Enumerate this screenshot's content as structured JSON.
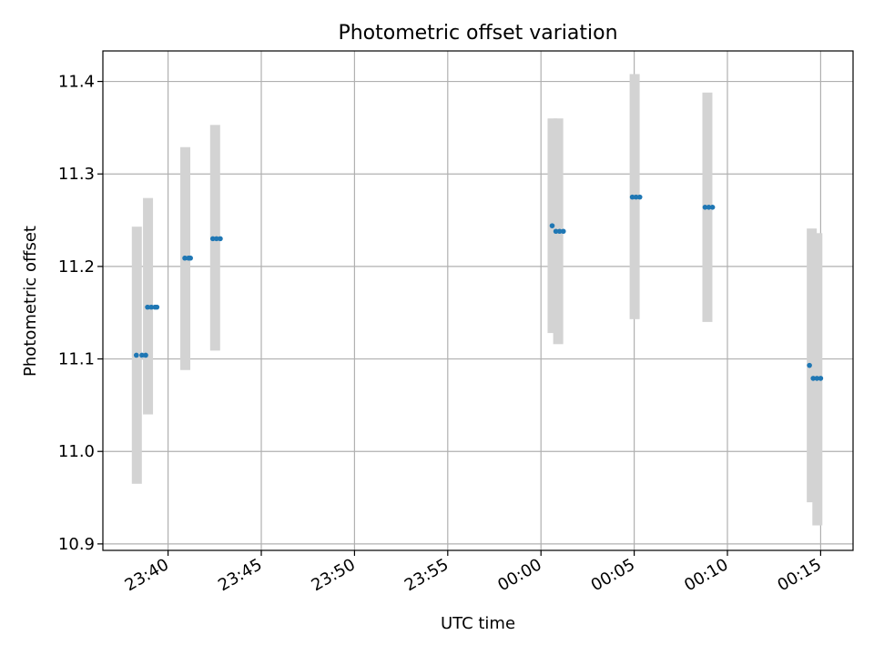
{
  "chart_data": {
    "type": "scatter",
    "title": "Photometric offset variation",
    "xlabel": "UTC time",
    "ylabel": "Photometric offset",
    "x_axis": {
      "type": "time",
      "ticks": [
        "23:40",
        "23:45",
        "23:50",
        "23:55",
        "00:00",
        "00:05",
        "00:10",
        "00:15"
      ]
    },
    "y_axis": {
      "ylim": [
        10.893,
        11.433
      ],
      "ticks": [
        "10.9",
        "11.0",
        "11.1",
        "11.2",
        "11.3",
        "11.4"
      ]
    },
    "grid": true,
    "error_bar_color": "#d3d3d3",
    "point_color": "#1f77b4",
    "error_bars": [
      {
        "x": "23:38.3",
        "low": 10.965,
        "high": 11.243
      },
      {
        "x": "23:38.9",
        "low": 11.04,
        "high": 11.274
      },
      {
        "x": "23:40.9",
        "low": 11.088,
        "high": 11.329
      },
      {
        "x": "23:42.5",
        "low": 11.109,
        "high": 11.353
      },
      {
        "x": "00:00.6",
        "low": 11.128,
        "high": 11.36
      },
      {
        "x": "00:00.9",
        "low": 11.116,
        "high": 11.36
      },
      {
        "x": "00:05.0",
        "low": 11.143,
        "high": 11.408
      },
      {
        "x": "00:08.9",
        "low": 11.14,
        "high": 11.388
      },
      {
        "x": "00:14.5",
        "low": 10.945,
        "high": 11.241
      },
      {
        "x": "00:14.8",
        "low": 10.92,
        "high": 11.236
      }
    ],
    "points": [
      {
        "x": "23:38.3",
        "y": 11.104
      },
      {
        "x": "23:38.6",
        "y": 11.104
      },
      {
        "x": "23:38.8",
        "y": 11.104
      },
      {
        "x": "23:38.9",
        "y": 11.156
      },
      {
        "x": "23:39.1",
        "y": 11.156
      },
      {
        "x": "23:39.3",
        "y": 11.156
      },
      {
        "x": "23:39.4",
        "y": 11.156
      },
      {
        "x": "23:40.9",
        "y": 11.209
      },
      {
        "x": "23:41.1",
        "y": 11.209
      },
      {
        "x": "23:41.2",
        "y": 11.209
      },
      {
        "x": "23:42.4",
        "y": 11.23
      },
      {
        "x": "23:42.6",
        "y": 11.23
      },
      {
        "x": "23:42.8",
        "y": 11.23
      },
      {
        "x": "00:00.6",
        "y": 11.244
      },
      {
        "x": "00:00.8",
        "y": 11.238
      },
      {
        "x": "00:01.0",
        "y": 11.238
      },
      {
        "x": "00:01.2",
        "y": 11.238
      },
      {
        "x": "00:04.9",
        "y": 11.275
      },
      {
        "x": "00:05.1",
        "y": 11.275
      },
      {
        "x": "00:05.3",
        "y": 11.275
      },
      {
        "x": "00:08.8",
        "y": 11.264
      },
      {
        "x": "00:09.0",
        "y": 11.264
      },
      {
        "x": "00:09.2",
        "y": 11.264
      },
      {
        "x": "00:14.4",
        "y": 11.093
      },
      {
        "x": "00:14.6",
        "y": 11.079
      },
      {
        "x": "00:14.8",
        "y": 11.079
      },
      {
        "x": "00:15.0",
        "y": 11.079
      }
    ]
  }
}
